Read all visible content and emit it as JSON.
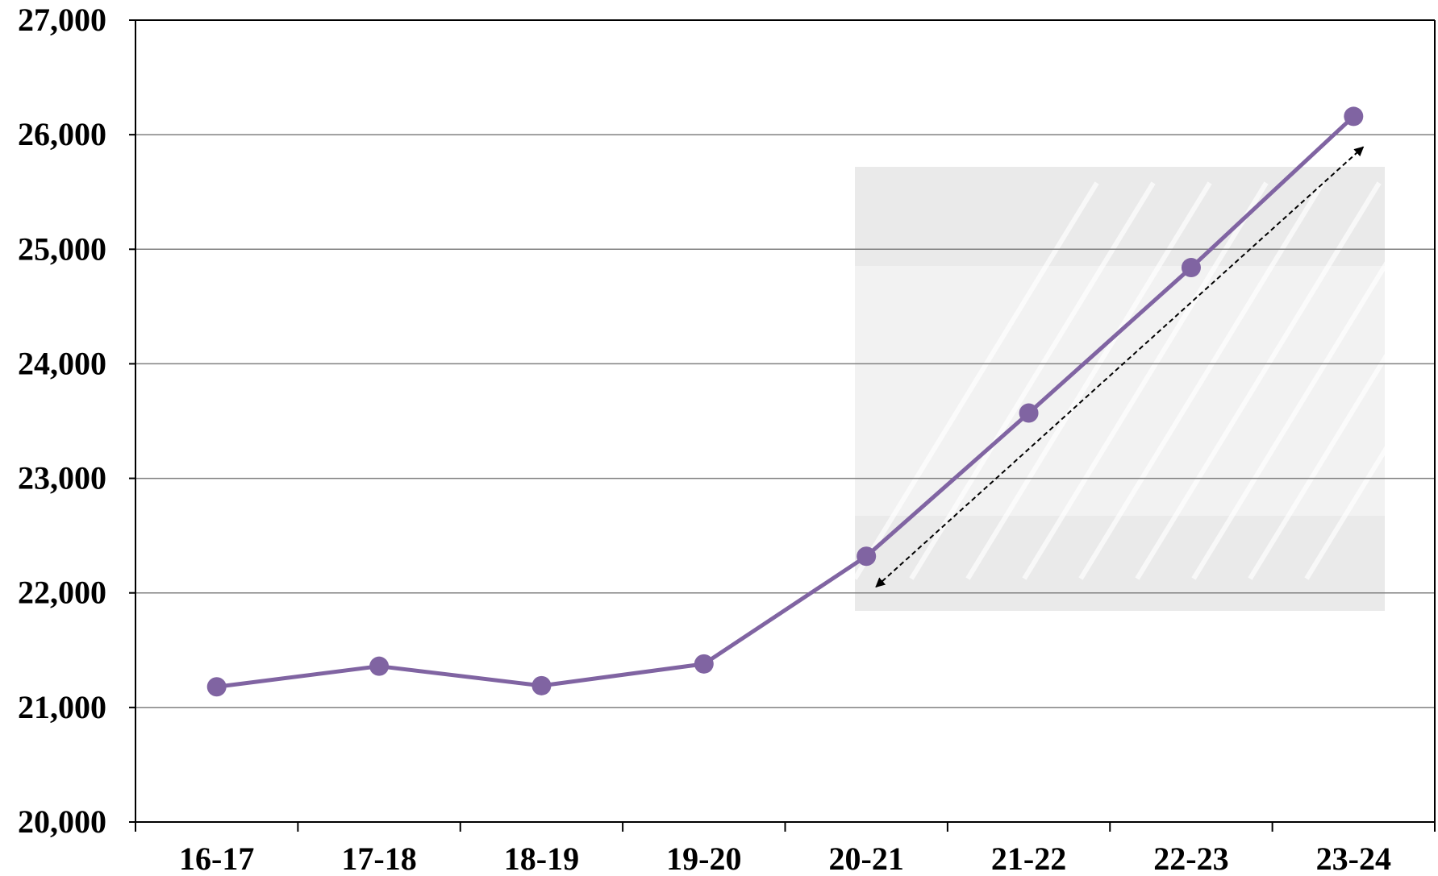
{
  "chart_data": {
    "type": "line",
    "categories": [
      "16-17",
      "17-18",
      "18-19",
      "19-20",
      "20-21",
      "21-22",
      "22-23",
      "23-24"
    ],
    "values": [
      21180,
      21360,
      21190,
      21380,
      22320,
      23570,
      24840,
      26160
    ],
    "ylim": [
      20000,
      27000
    ],
    "yticks": [
      20000,
      21000,
      22000,
      23000,
      24000,
      25000,
      26000,
      27000
    ],
    "ytick_labels": [
      "20,000",
      "21,000",
      "22,000",
      "23,000",
      "24,000",
      "25,000",
      "26,000",
      "27,000"
    ],
    "grid": true,
    "legend": "none",
    "annotations": [
      {
        "type": "double-arrow",
        "style": "dashed",
        "from_category": "20-21",
        "to_category": "23-24"
      }
    ],
    "colors": {
      "line": "#8064a2",
      "grid": "#808080",
      "axis": "#000000",
      "watermark": "#e6e6e6"
    }
  }
}
